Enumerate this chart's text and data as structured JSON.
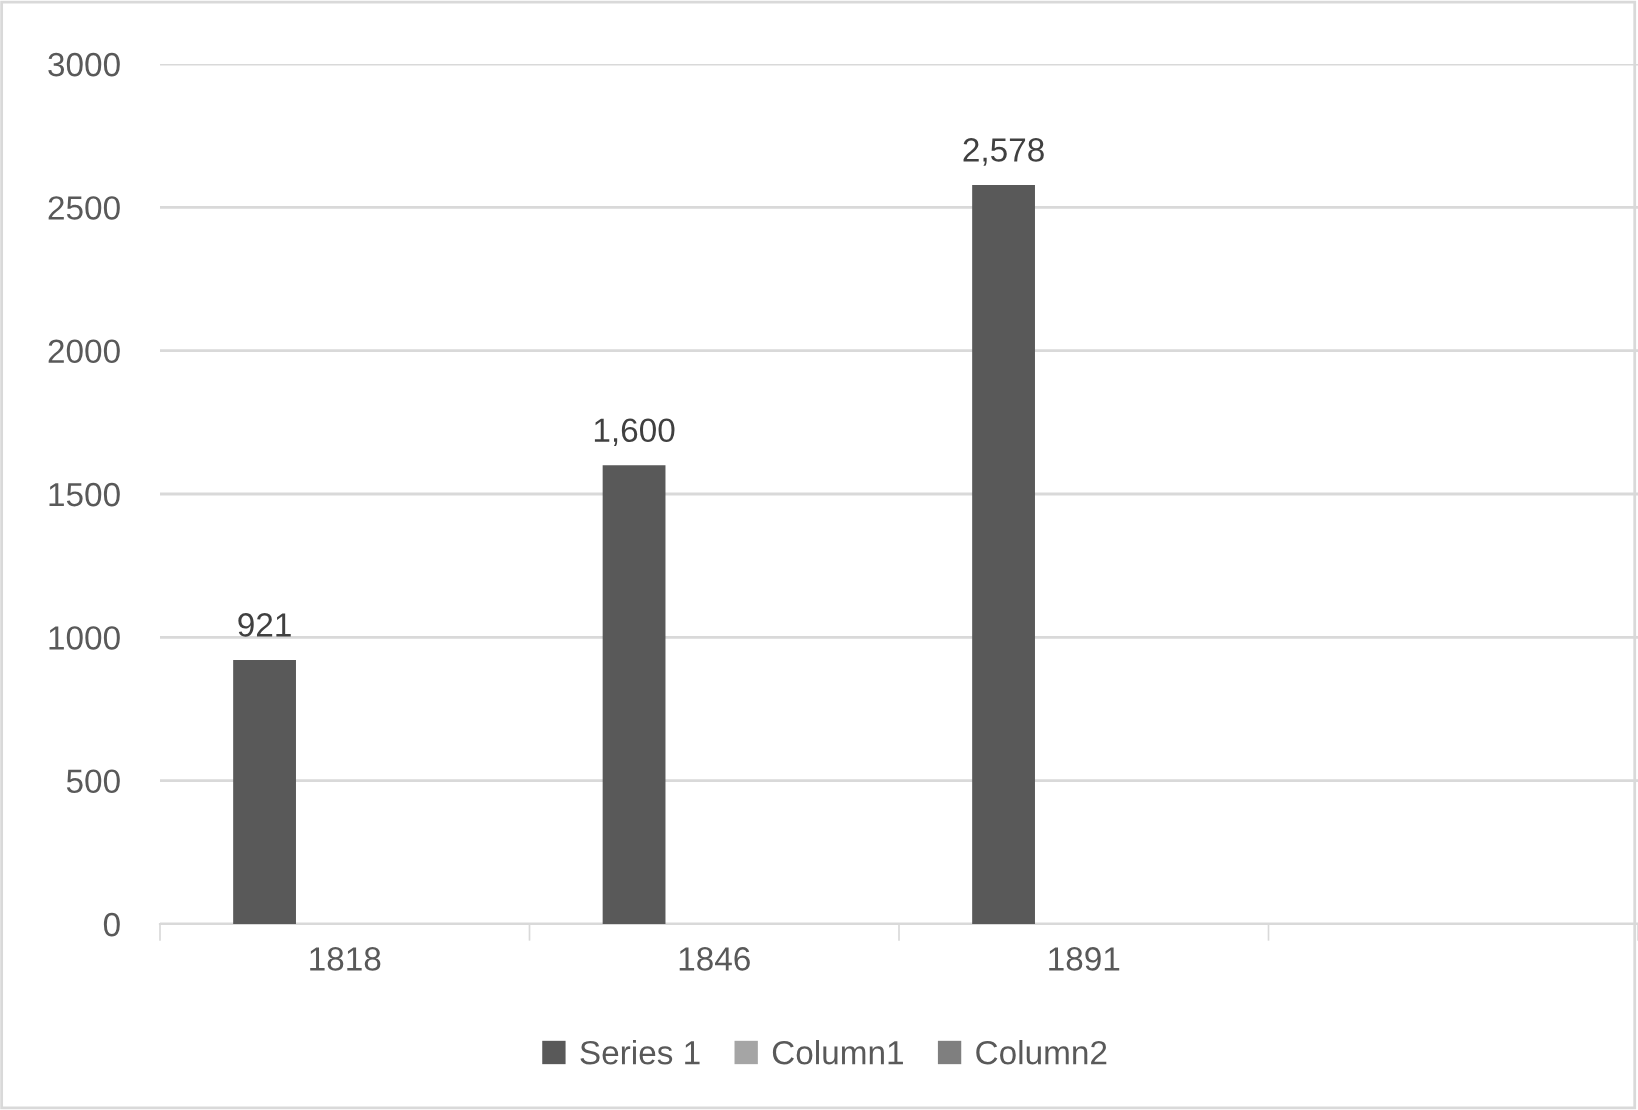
{
  "chart_data": {
    "type": "bar",
    "categories": [
      "1818",
      "1846",
      "1891",
      null
    ],
    "series": [
      {
        "name": "Series 1",
        "color": "#595959",
        "values": [
          921,
          1600,
          2578,
          null
        ],
        "value_labels": [
          "921",
          "1,600",
          "2,578",
          null
        ]
      },
      {
        "name": "Column1",
        "color": "#a5a5a5",
        "values": [
          null,
          null,
          null,
          null
        ]
      },
      {
        "name": "Column2",
        "color": "#7f7f7f",
        "values": [
          null,
          null,
          null,
          null
        ]
      }
    ],
    "ylim": [
      0,
      3000
    ],
    "yticks": [
      0,
      500,
      1000,
      1500,
      2000,
      2500,
      3000
    ],
    "grid": "y",
    "legend": "bottom"
  }
}
